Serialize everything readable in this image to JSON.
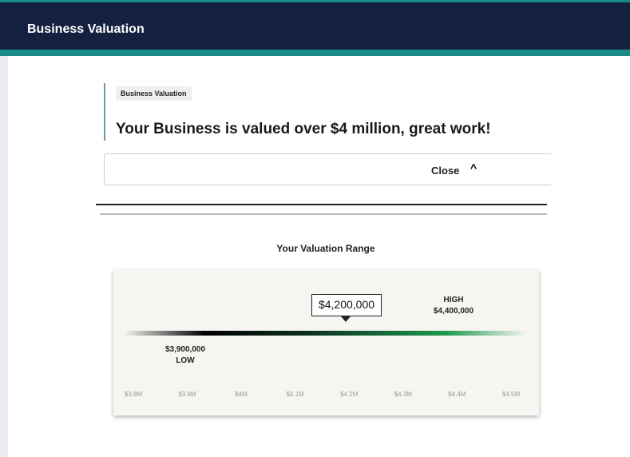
{
  "header": {
    "title": "Business Valuation"
  },
  "result": {
    "tag": "Business Valuation",
    "heading": "Your Business is valued over $4 million, great work!",
    "close": "Close"
  },
  "range": {
    "title": "Your Valuation Range",
    "value": "$4,200,000",
    "high": {
      "label": "HIGH",
      "value": "$4,400,000"
    },
    "low": {
      "label": "LOW",
      "value": "$3,900,000"
    },
    "axis": [
      "$3.8M",
      "$3.9M",
      "$4M",
      "$4.1M",
      "$4.2M",
      "$4.3M",
      "$4.4M",
      "$4.5M"
    ]
  }
}
